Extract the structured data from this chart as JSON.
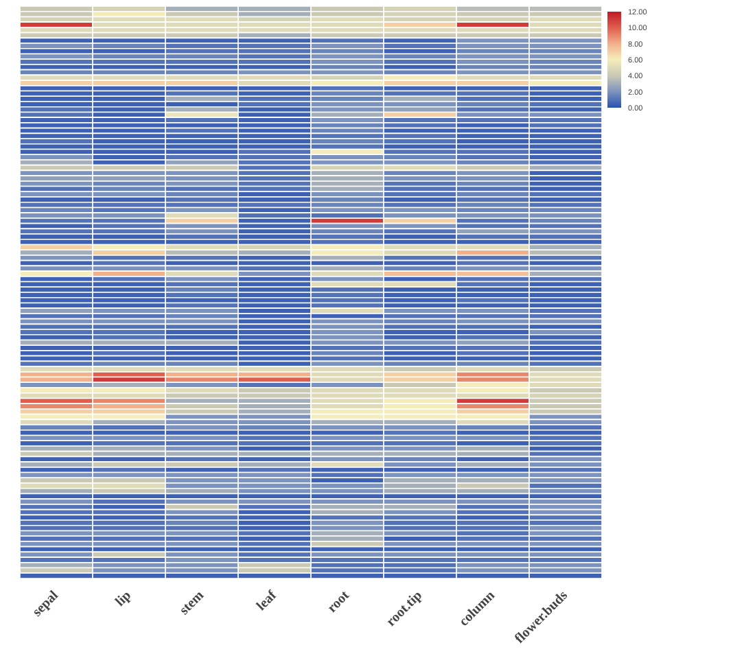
{
  "chart_data": {
    "type": "heatmap",
    "categories": [
      "sepal",
      "lip",
      "stem",
      "leaf",
      "root",
      "root.tip",
      "column",
      "flower.buds"
    ],
    "y_categories": [
      null,
      null,
      null,
      null,
      null,
      null,
      null,
      null,
      null,
      null,
      null,
      null,
      null,
      null,
      null,
      null,
      null,
      null,
      null,
      null,
      null,
      null,
      null,
      null,
      null,
      null,
      null,
      null,
      null,
      null,
      null,
      null,
      null,
      null,
      null,
      null,
      null,
      null,
      null,
      null,
      null,
      null,
      null,
      null,
      null,
      null,
      null,
      null,
      null,
      null,
      null,
      null,
      null,
      null,
      null,
      null,
      null,
      null,
      null,
      null,
      null,
      null,
      null,
      null,
      null,
      null,
      null,
      null,
      null,
      null,
      null,
      null,
      null,
      null,
      null,
      null,
      null,
      null,
      null,
      null,
      null,
      null,
      null,
      null,
      null,
      null,
      null,
      null,
      null,
      null,
      null,
      null,
      null,
      null,
      null,
      null,
      null,
      null,
      null,
      null,
      null,
      null,
      null,
      null,
      null,
      null,
      null,
      null
    ],
    "clim": [
      0,
      12
    ],
    "cticks": [
      {
        "value": 0,
        "label": "0.00"
      },
      {
        "value": 2,
        "label": "2.00"
      },
      {
        "value": 4,
        "label": "4.00"
      },
      {
        "value": 6,
        "label": "6.00"
      },
      {
        "value": 8,
        "label": "8.00"
      },
      {
        "value": 10,
        "label": "10.00"
      },
      {
        "value": 12,
        "label": "12.00"
      }
    ],
    "cells": [
      [
        4,
        4.5,
        3,
        3,
        4,
        4.5,
        3.5,
        3.5
      ],
      [
        4,
        6,
        4,
        3,
        4,
        4.5,
        4,
        4
      ],
      [
        4.5,
        5,
        5,
        4.5,
        5,
        4.5,
        4.5,
        5
      ],
      [
        11,
        5,
        5,
        5,
        5,
        7,
        11,
        5
      ],
      [
        5,
        5,
        5,
        5,
        5,
        5,
        5,
        5
      ],
      [
        4,
        4,
        4,
        3,
        4,
        4,
        4,
        4
      ],
      [
        0.5,
        0.5,
        0.5,
        0.5,
        1,
        0.5,
        2,
        2
      ],
      [
        2,
        1.5,
        1,
        1,
        2,
        1,
        2,
        2
      ],
      [
        0.5,
        0.5,
        1,
        1,
        1.5,
        0.5,
        1.5,
        1.5
      ],
      [
        2,
        1.5,
        1.5,
        1,
        2,
        1.5,
        2,
        2
      ],
      [
        1,
        1,
        1,
        1,
        2,
        1,
        2,
        1.5
      ],
      [
        0.5,
        0.5,
        0.5,
        0.5,
        1.5,
        0.5,
        1.5,
        1.5
      ],
      [
        1.5,
        1.5,
        1.5,
        2,
        2,
        1.5,
        2,
        2
      ],
      [
        5,
        5,
        5,
        5,
        4.5,
        6,
        5,
        5
      ],
      [
        7,
        7,
        7,
        5,
        6,
        7,
        7,
        6
      ],
      [
        0.5,
        0.5,
        0.5,
        0.5,
        1,
        0.5,
        0.5,
        0.5
      ],
      [
        0.5,
        0.5,
        1,
        0.5,
        1.5,
        1,
        1,
        0.5
      ],
      [
        0.5,
        0.5,
        3,
        1,
        1.5,
        3,
        1,
        0.5
      ],
      [
        0.5,
        0.5,
        0.5,
        1,
        2,
        2,
        1.5,
        1
      ],
      [
        1,
        0.5,
        3,
        0.5,
        2,
        2.5,
        1,
        0.5
      ],
      [
        1,
        0.5,
        5.5,
        0.5,
        3,
        7,
        2,
        2
      ],
      [
        0.5,
        0.5,
        1,
        0.5,
        2,
        1,
        1,
        1
      ],
      [
        0.5,
        0.5,
        0.5,
        0.5,
        1.5,
        1,
        0.5,
        1
      ],
      [
        0.5,
        0.5,
        1,
        0.5,
        1.5,
        0.5,
        0.5,
        0.5
      ],
      [
        0.5,
        0.5,
        0.5,
        0.5,
        1,
        1,
        0.5,
        0.5
      ],
      [
        1,
        0.5,
        0.5,
        0.5,
        1.5,
        1,
        0.5,
        0.5
      ],
      [
        0.5,
        0.5,
        0.5,
        0.5,
        1,
        0.5,
        0.5,
        0.5
      ],
      [
        0.5,
        0.5,
        0.5,
        1,
        6,
        1,
        1,
        0.5
      ],
      [
        2,
        0.5,
        1,
        1,
        2,
        1.5,
        1,
        0.5
      ],
      [
        3,
        0.5,
        2.5,
        1,
        2,
        2,
        1.5,
        1
      ],
      [
        4,
        4,
        4,
        1,
        4.5,
        5,
        4,
        3
      ],
      [
        2,
        2,
        2,
        1,
        3,
        1.5,
        2,
        0.5
      ],
      [
        2.5,
        2.5,
        2,
        1,
        3,
        2,
        2,
        0.5
      ],
      [
        2,
        1.5,
        2,
        1,
        3,
        1,
        1.5,
        0.5
      ],
      [
        1,
        1.5,
        1,
        1,
        3,
        1,
        1,
        0.5
      ],
      [
        2,
        2,
        1.5,
        0.5,
        2,
        1,
        1.5,
        1
      ],
      [
        0.5,
        0.5,
        1,
        0.5,
        1.5,
        0.5,
        1,
        0.5
      ],
      [
        1,
        1,
        1,
        1,
        1.5,
        1,
        1.5,
        1
      ],
      [
        1.5,
        1,
        2,
        0.5,
        2,
        2,
        1.5,
        1.5
      ],
      [
        2,
        2,
        5,
        1,
        1,
        2,
        2,
        2
      ],
      [
        1,
        1,
        7,
        0.5,
        11,
        7,
        1,
        1.5
      ],
      [
        0.5,
        1,
        2,
        0.5,
        2,
        2,
        1,
        1
      ],
      [
        1,
        1,
        2,
        0.5,
        1.5,
        1,
        2.5,
        2
      ],
      [
        0.5,
        0.5,
        1,
        0.5,
        1,
        0.5,
        1,
        1
      ],
      [
        0.5,
        0.5,
        0.5,
        0.5,
        1,
        0.5,
        0.5,
        0.5
      ],
      [
        7,
        6,
        5,
        4.5,
        6,
        5,
        5,
        3
      ],
      [
        3,
        7,
        3.5,
        3,
        6,
        5,
        8,
        3.5
      ],
      [
        2,
        1,
        1,
        0.5,
        3,
        1,
        1,
        1
      ],
      [
        0.5,
        1,
        0.5,
        0.5,
        0.5,
        0.5,
        1,
        0.5
      ],
      [
        2,
        2,
        2,
        1,
        3,
        1.5,
        2,
        2
      ],
      [
        6,
        8,
        5,
        2,
        5,
        7.5,
        7.5,
        3
      ],
      [
        0.5,
        1,
        2,
        0.5,
        2,
        0.5,
        1,
        1
      ],
      [
        0.5,
        0.5,
        1,
        0.5,
        5,
        5,
        1,
        0.5
      ],
      [
        0.5,
        0.5,
        1.5,
        0.5,
        1,
        0.5,
        0.5,
        0.5
      ],
      [
        0.5,
        0.5,
        1,
        0.5,
        1,
        0.5,
        0.5,
        0.5
      ],
      [
        0.5,
        0.5,
        0.5,
        0.5,
        1,
        0.5,
        1,
        0.5
      ],
      [
        0.5,
        0.5,
        1,
        0.5,
        1,
        0.5,
        0.5,
        0.5
      ],
      [
        2.5,
        2,
        2,
        0.5,
        5,
        2,
        2,
        1
      ],
      [
        1,
        1,
        1.5,
        0.5,
        0.5,
        1,
        1,
        1
      ],
      [
        2,
        2,
        2,
        0.5,
        2,
        1.5,
        2,
        2
      ],
      [
        1,
        1,
        1,
        0.5,
        2,
        1,
        1,
        0.5
      ],
      [
        1,
        1,
        0.5,
        0.5,
        2,
        0.5,
        0.5,
        2
      ],
      [
        0.5,
        1,
        0.5,
        0.5,
        2,
        0.5,
        1,
        0.5
      ],
      [
        3,
        3,
        3,
        0.5,
        2,
        2,
        2.5,
        1
      ],
      [
        0.5,
        0.5,
        0.5,
        0.5,
        1,
        1,
        1,
        0.5
      ],
      [
        0.5,
        1,
        0.5,
        0.5,
        1.5,
        0.5,
        1,
        0.5
      ],
      [
        0.5,
        0.5,
        0.5,
        0.5,
        1,
        0.5,
        0.5,
        0.5
      ],
      [
        1,
        1.5,
        1.5,
        0.5,
        2,
        1.5,
        1.5,
        1
      ],
      [
        5,
        5,
        5,
        5,
        5,
        4,
        5,
        4
      ],
      [
        8,
        10,
        8,
        8,
        5,
        7,
        9,
        5
      ],
      [
        8,
        11,
        9,
        10,
        5,
        7,
        9,
        5
      ],
      [
        2,
        3,
        2,
        1,
        2,
        4,
        6,
        5
      ],
      [
        6,
        6,
        5,
        4,
        5,
        5,
        6,
        4
      ],
      [
        5,
        5,
        4,
        4,
        5,
        5,
        5,
        4.5
      ],
      [
        10,
        9,
        3,
        3,
        5,
        6,
        11,
        4
      ],
      [
        9,
        8,
        4,
        3,
        5,
        6,
        9,
        4
      ],
      [
        7,
        7,
        4,
        3,
        6,
        6,
        7,
        4
      ],
      [
        6,
        6,
        2,
        2,
        6,
        6,
        6,
        2
      ],
      [
        5,
        3,
        2,
        2,
        3,
        3,
        5,
        2
      ],
      [
        1.5,
        1,
        2,
        1.5,
        2,
        2,
        1.5,
        1
      ],
      [
        0.5,
        0.5,
        0.5,
        0.5,
        0.5,
        1,
        0.5,
        0.5
      ],
      [
        2,
        2,
        2,
        1,
        2,
        2,
        2,
        1
      ],
      [
        0.5,
        1,
        1,
        1,
        1,
        1,
        0.5,
        1
      ],
      [
        3,
        3,
        2,
        0.5,
        2,
        2,
        3,
        0.5
      ],
      [
        4,
        3,
        3,
        3,
        3,
        3,
        3,
        1
      ],
      [
        0.5,
        0.5,
        1,
        0.5,
        2,
        1.5,
        0.5,
        2
      ],
      [
        3,
        4,
        4,
        3,
        5,
        2,
        3,
        2
      ],
      [
        0.5,
        1,
        0.5,
        1,
        0.5,
        0.5,
        0.5,
        1
      ],
      [
        2,
        2,
        2,
        2,
        1,
        2,
        2,
        2
      ],
      [
        4,
        4,
        2,
        2,
        0.5,
        3,
        3,
        2
      ],
      [
        5,
        5,
        2,
        2,
        2,
        3,
        4,
        1
      ],
      [
        3,
        4,
        3,
        2,
        2,
        3,
        3,
        2
      ],
      [
        0.5,
        0.5,
        0.5,
        0.5,
        0.5,
        0.5,
        0.5,
        0.5
      ],
      [
        2,
        1,
        2,
        2,
        2,
        2,
        2,
        2
      ],
      [
        1,
        0.5,
        4,
        1,
        3,
        3,
        1,
        2
      ],
      [
        1,
        1,
        2,
        0.5,
        3,
        2,
        1,
        2
      ],
      [
        0.5,
        0.5,
        1,
        0.5,
        1,
        1,
        0.5,
        1
      ],
      [
        1,
        1,
        1.5,
        0.5,
        2,
        1,
        1,
        1
      ],
      [
        1,
        1,
        1,
        0.5,
        2,
        1,
        1,
        2
      ],
      [
        2,
        2,
        2,
        1,
        3,
        2,
        1,
        2
      ],
      [
        1,
        1,
        1,
        0.5,
        3,
        0.5,
        1,
        1
      ],
      [
        2,
        2,
        2,
        1,
        4,
        2,
        2,
        2
      ],
      [
        0.5,
        0.5,
        0.5,
        0.5,
        0.5,
        0.5,
        0.5,
        0.5
      ],
      [
        2,
        4,
        2,
        1,
        2,
        2,
        2,
        2
      ],
      [
        1,
        1,
        2,
        1,
        1,
        1,
        1,
        1
      ],
      [
        3,
        2,
        2,
        4,
        1,
        1,
        2,
        2
      ],
      [
        4,
        2,
        2,
        4,
        1,
        1,
        2,
        2
      ],
      [
        0.5,
        0.5,
        0.5,
        0.5,
        0.5,
        0.5,
        0.5,
        0.5
      ]
    ]
  }
}
